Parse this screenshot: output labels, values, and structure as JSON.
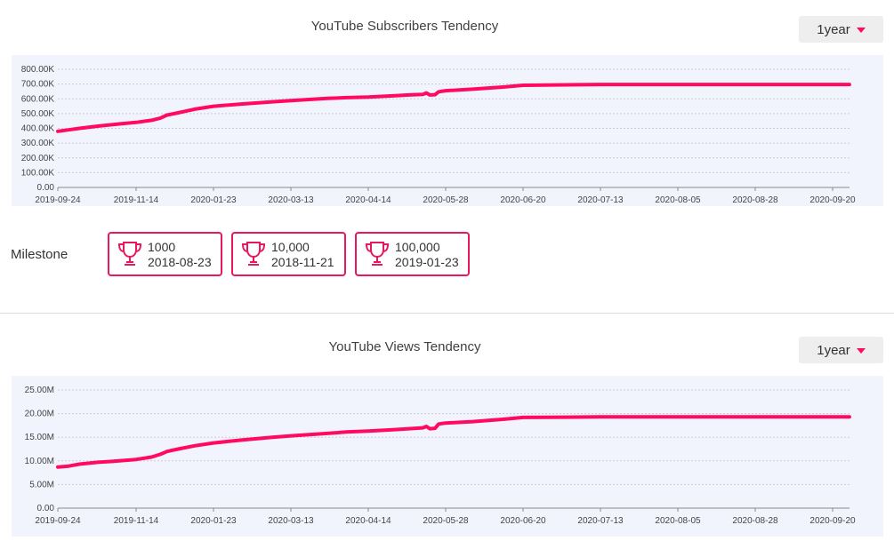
{
  "subscribers": {
    "title": "YouTube Subscribers Tendency",
    "range_label": "1year"
  },
  "views": {
    "title": "YouTube Views Tendency",
    "range_label": "1year"
  },
  "milestone": {
    "label": "Milestone",
    "items": [
      {
        "value": "1000",
        "date": "2018-08-23"
      },
      {
        "value": "10,000",
        "date": "2018-11-21"
      },
      {
        "value": "100,000",
        "date": "2019-01-23"
      }
    ]
  },
  "colors": {
    "line": "#ff0a60",
    "panel": "#f2f4fd",
    "accent": "#e6195f"
  },
  "icons": {
    "range_caret": "caret-down-icon",
    "milestone": "trophy-icon"
  },
  "chart_data": [
    {
      "type": "line",
      "title": "",
      "xlabel": "",
      "ylabel": "",
      "ylim": [
        0,
        800000
      ],
      "y_ticks": [
        0,
        100000,
        200000,
        300000,
        400000,
        500000,
        600000,
        700000,
        800000
      ],
      "y_tick_labels": [
        "0.00",
        "100.00K",
        "200.00K",
        "300.00K",
        "400.00K",
        "500.00K",
        "600.00K",
        "700.00K",
        "800.00K"
      ],
      "x_tick_labels": [
        "2019-09-24",
        "2019-11-14",
        "2020-01-23",
        "2020-03-13",
        "2020-04-14",
        "2020-05-28",
        "2020-06-20",
        "2020-07-13",
        "2020-08-05",
        "2020-08-28",
        "2020-09-20"
      ],
      "grid": true,
      "series": [
        {
          "x": [
            "2019-09-24",
            "2019-10-01",
            "2019-10-08",
            "2019-10-20",
            "2019-11-03",
            "2019-11-14",
            "2019-11-28",
            "2019-12-06",
            "2019-12-12",
            "2019-12-22",
            "2020-01-06",
            "2020-01-23",
            "2020-02-10",
            "2020-03-01",
            "2020-03-13",
            "2020-03-28",
            "2020-04-05",
            "2020-04-14",
            "2020-04-28",
            "2020-05-07",
            "2020-05-15",
            "2020-05-17",
            "2020-05-19",
            "2020-05-22",
            "2020-05-24",
            "2020-05-28",
            "2020-06-05",
            "2020-06-14",
            "2020-06-20",
            "2020-07-13",
            "2020-08-05",
            "2020-08-28",
            "2020-09-20",
            "2020-09-25"
          ],
          "values": [
            380000,
            390000,
            400000,
            415000,
            430000,
            440000,
            455000,
            470000,
            490000,
            505000,
            530000,
            550000,
            565000,
            580000,
            588000,
            603000,
            608000,
            612000,
            620000,
            626000,
            630000,
            640000,
            626000,
            628000,
            648000,
            655000,
            665000,
            680000,
            692000,
            697000,
            697000,
            697000,
            697000,
            697000
          ]
        }
      ]
    },
    {
      "type": "line",
      "title": "",
      "xlabel": "",
      "ylabel": "",
      "ylim": [
        0,
        25000000
      ],
      "y_ticks": [
        0,
        5000000,
        10000000,
        15000000,
        20000000,
        25000000
      ],
      "y_tick_labels": [
        "0.00",
        "5.00M",
        "10.00M",
        "15.00M",
        "20.00M",
        "25.00M"
      ],
      "x_tick_labels": [
        "2019-09-24",
        "2019-11-14",
        "2020-01-23",
        "2020-03-13",
        "2020-04-14",
        "2020-05-28",
        "2020-06-20",
        "2020-07-13",
        "2020-08-05",
        "2020-08-28",
        "2020-09-20"
      ],
      "grid": true,
      "series": [
        {
          "x": [
            "2019-09-24",
            "2019-10-01",
            "2019-10-08",
            "2019-10-20",
            "2019-11-03",
            "2019-11-14",
            "2019-11-28",
            "2019-12-06",
            "2019-12-12",
            "2019-12-22",
            "2020-01-06",
            "2020-01-23",
            "2020-02-10",
            "2020-03-01",
            "2020-03-13",
            "2020-03-28",
            "2020-04-05",
            "2020-04-14",
            "2020-04-28",
            "2020-05-07",
            "2020-05-15",
            "2020-05-17",
            "2020-05-19",
            "2020-05-22",
            "2020-05-24",
            "2020-05-28",
            "2020-06-05",
            "2020-06-14",
            "2020-06-20",
            "2020-07-13",
            "2020-08-05",
            "2020-08-28",
            "2020-09-20",
            "2020-09-25"
          ],
          "values": [
            8700000,
            8900000,
            9300000,
            9700000,
            10000000,
            10300000,
            10800000,
            11400000,
            12000000,
            12500000,
            13200000,
            13800000,
            14400000,
            15000000,
            15300000,
            15800000,
            16100000,
            16300000,
            16600000,
            16800000,
            17000000,
            17300000,
            16800000,
            16900000,
            17800000,
            18000000,
            18300000,
            18800000,
            19200000,
            19300000,
            19300000,
            19300000,
            19300000,
            19300000
          ]
        }
      ]
    }
  ]
}
